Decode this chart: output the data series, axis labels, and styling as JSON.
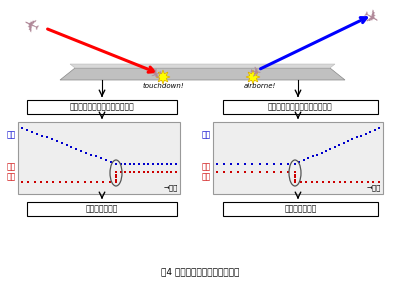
{
  "title": "围4 離着陸時刻の自動判定原理",
  "bg_color": "#ffffff",
  "panel_bg": "#eeeeee",
  "left_box_label": "トランスポンダ応答信号の解析",
  "right_box_label": "トランスポンダ応答信号の解析",
  "left_result_label": "着陸時刻の判定",
  "right_result_label": "離陸時刻の判定",
  "touchdown_label": "touchdown!",
  "airborne_label": "airborne!",
  "time_label": "→時刻",
  "altitude_label": "高度",
  "ground_label": "接地\n状態",
  "blue_color": "#0000cc",
  "red_color": "#cc0000",
  "runway_color": "#c0c0c0",
  "runway_top_color": "#d8d8d8",
  "panel_edge_color": "#999999",
  "box_edge_color": "#000000",
  "arrow_lw": 1.5
}
